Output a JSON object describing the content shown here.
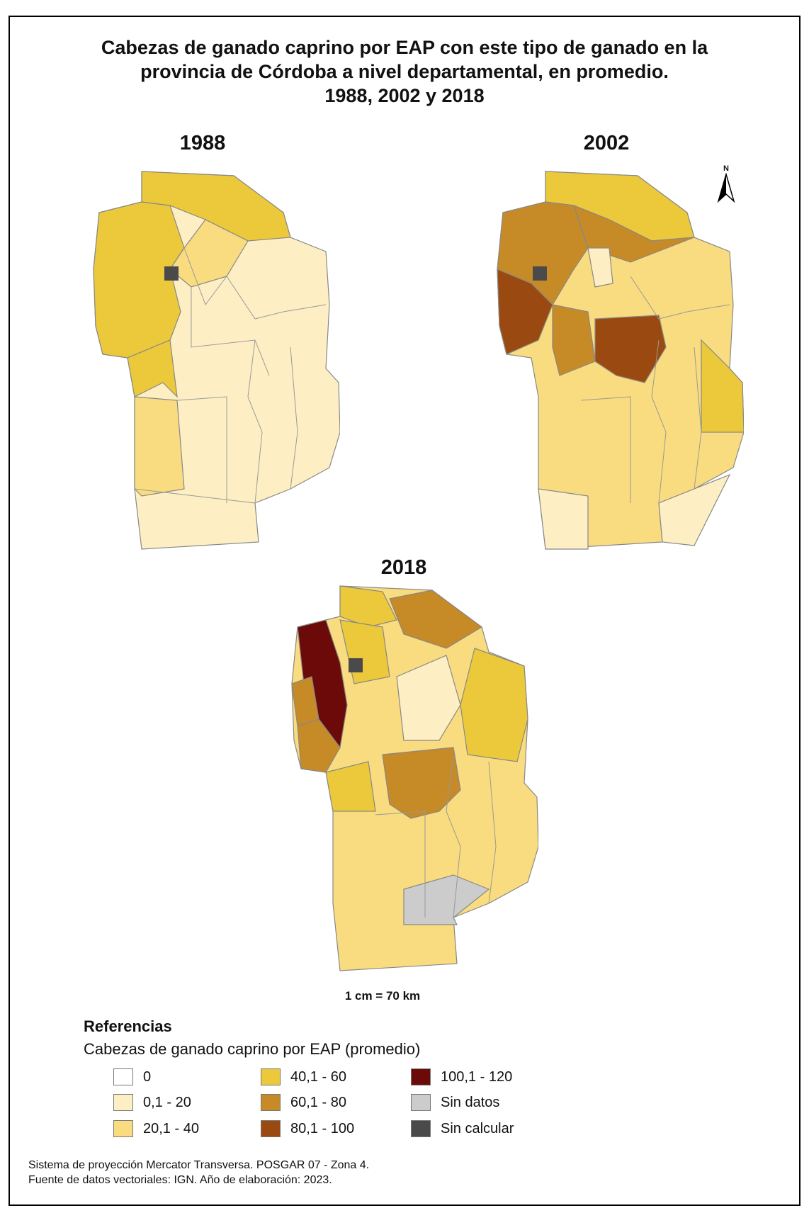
{
  "title_lines": [
    "Cabezas de ganado caprino por EAP con este tipo de ganado en la",
    "provincia de Córdoba a nivel departamental, en promedio.",
    "1988, 2002 y 2018"
  ],
  "maps": [
    {
      "year": "1988"
    },
    {
      "year": "2002"
    },
    {
      "year": "2018"
    }
  ],
  "north_label": "N",
  "scale_text": "1 cm = 70 km",
  "legend": {
    "title": "Referencias",
    "subtitle": "Cabezas de ganado caprino por EAP (promedio)",
    "items": [
      {
        "label": "0",
        "color": "#ffffff"
      },
      {
        "label": "0,1 - 20",
        "color": "#fdefc3"
      },
      {
        "label": "20,1 - 40",
        "color": "#f9dc7f"
      },
      {
        "label": "40,1 -  60",
        "color": "#ecc93a"
      },
      {
        "label": "60,1 - 80",
        "color": "#c68a27"
      },
      {
        "label": "80,1 - 100",
        "color": "#9a4a10"
      },
      {
        "label": "100,1 - 120",
        "color": "#6b0a08"
      },
      {
        "label": "Sin datos",
        "color": "#cccccc"
      },
      {
        "label": "Sin calcular",
        "color": "#4a4a4a"
      }
    ]
  },
  "footer_lines": [
    "Sistema de proyección Mercator Transversa. POSGAR 07 - Zona 4.",
    "Fuente de datos vectoriales: IGN. Año de elaboración: 2023."
  ]
}
